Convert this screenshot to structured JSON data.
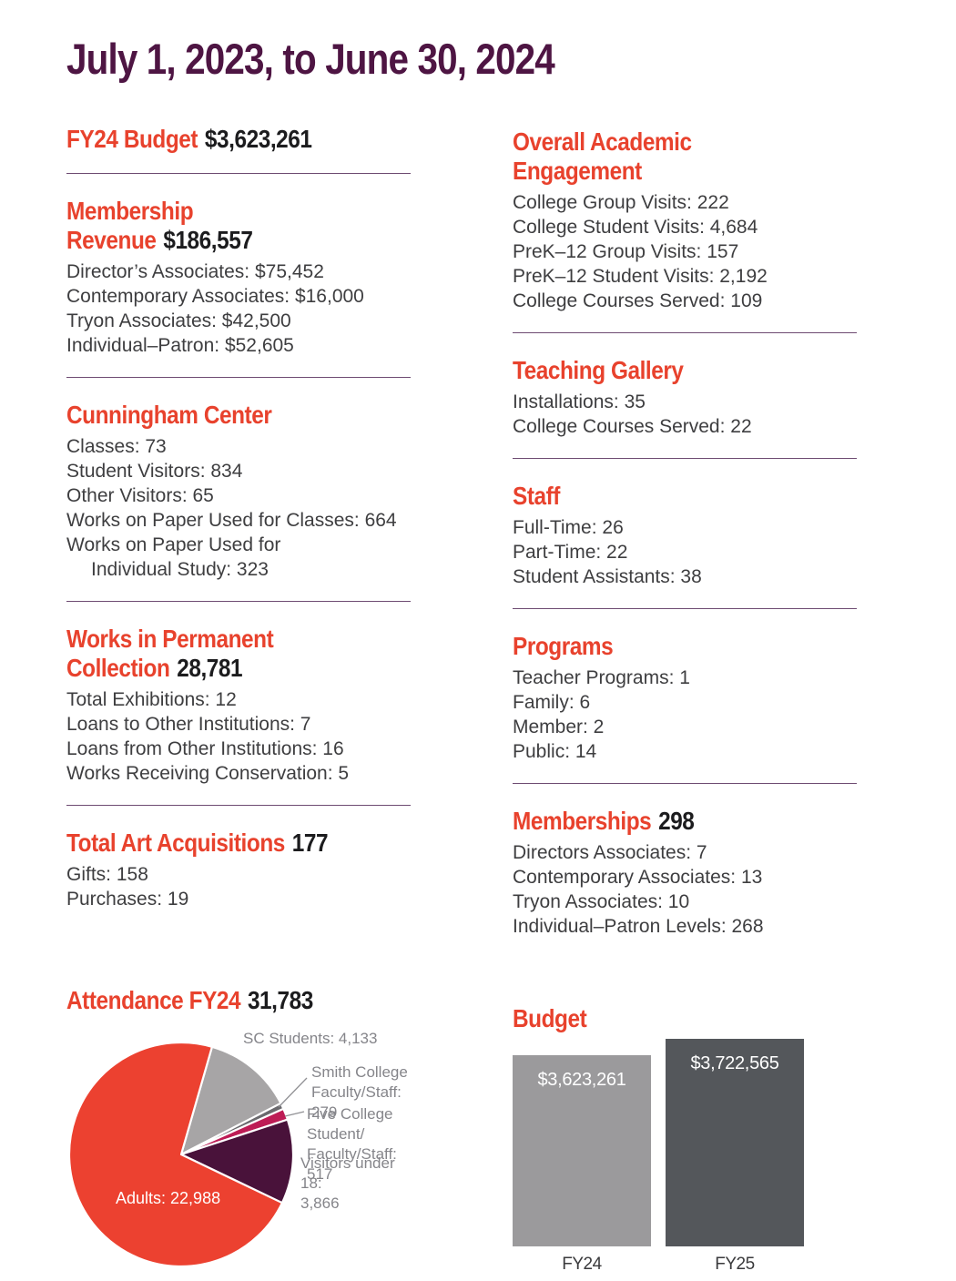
{
  "title": "July 1, 2023, to June 30, 2024",
  "columns": {
    "left": [
      {
        "heading": "FY24 Budget",
        "value": "$3,623,261",
        "lines": [],
        "divider": true
      },
      {
        "heading": "Membership Revenue",
        "value": "$186,557",
        "lines": [
          {
            "text": "Director’s Associates: $75,452"
          },
          {
            "text": "Contemporary Associates: $16,000"
          },
          {
            "text": "Tryon Associates: $42,500"
          },
          {
            "text": "Individual–Patron: $52,605"
          }
        ],
        "divider": true
      },
      {
        "heading": "Cunningham Center",
        "value": "",
        "lines": [
          {
            "text": "Classes: 73"
          },
          {
            "text": "Student Visitors: 834"
          },
          {
            "text": "Other Visitors: 65"
          },
          {
            "text": "Works on Paper Used for Classes: 664"
          },
          {
            "text": "Works on Paper Used for"
          },
          {
            "text": "Individual Study: 323",
            "indent": true
          }
        ],
        "divider": true
      },
      {
        "heading": "Works in Permanent\nCollection",
        "value": "28,781",
        "lines": [
          {
            "text": "Total Exhibitions: 12"
          },
          {
            "text": "Loans to Other Institutions: 7"
          },
          {
            "text": "Loans from Other Institutions: 16"
          },
          {
            "text": "Works Receiving Conservation: 5"
          }
        ],
        "divider": true
      },
      {
        "heading": "Total Art Acquisitions",
        "value": "177",
        "lines": [
          {
            "text": "Gifts: 158"
          },
          {
            "text": "Purchases: 19"
          }
        ],
        "divider": false
      }
    ],
    "right": [
      {
        "heading": "Overall Academic Engagement",
        "value": "",
        "lines": [
          {
            "text": "College Group Visits: 222"
          },
          {
            "text": "College Student Visits: 4,684"
          },
          {
            "text": "PreK–12 Group Visits: 157"
          },
          {
            "text": "PreK–12 Student Visits: 2,192"
          },
          {
            "text": "College Courses Served: 109"
          }
        ],
        "divider": true
      },
      {
        "heading": "Teaching Gallery",
        "value": "",
        "lines": [
          {
            "text": "Installations: 35"
          },
          {
            "text": "College Courses Served: 22"
          }
        ],
        "divider": true
      },
      {
        "heading": "Staff",
        "value": "",
        "lines": [
          {
            "text": "Full-Time: 26"
          },
          {
            "text": "Part-Time: 22"
          },
          {
            "text": "Student Assistants: 38"
          }
        ],
        "divider": true
      },
      {
        "heading": "Programs",
        "value": "",
        "lines": [
          {
            "text": "Teacher Programs: 1"
          },
          {
            "text": "Family: 6"
          },
          {
            "text": "Member: 2"
          },
          {
            "text": "Public: 14"
          }
        ],
        "divider": true
      },
      {
        "heading": "Memberships",
        "value": "298",
        "lines": [
          {
            "text": "Directors Associates: 7"
          },
          {
            "text": "Contemporary Associates: 13"
          },
          {
            "text": "Tryon Associates: 10"
          },
          {
            "text": "Individual–Patron Levels: 268"
          }
        ],
        "divider": false
      }
    ]
  },
  "attendance": {
    "heading": "Attendance FY24",
    "value": "31,783"
  },
  "budget": {
    "heading": "Budget"
  },
  "chart_data": [
    {
      "type": "pie",
      "title": "Attendance FY24",
      "total": 31783,
      "start_angle_deg_clockwise_from_north": 16,
      "categories": [
        "SC Students",
        "Smith College Faculty/Staff",
        "Five College Student/Faculty/Staff",
        "Visitors under 18",
        "Adults"
      ],
      "values": [
        4133,
        279,
        517,
        3866,
        22988
      ],
      "colors": [
        "#a7a5a6",
        "#6a696d",
        "#bd1c55",
        "#49123a",
        "#ec4130"
      ],
      "labels": [
        "SC Students: 4,133",
        "Smith College\nFaculty/Staff: 279",
        "Five College Student/\nFaculty/Staff: 517",
        "Visitors under 18:\n3,866",
        "Adults: 22,988"
      ],
      "legend_position": "outside-right"
    },
    {
      "type": "bar",
      "title": "Budget",
      "categories": [
        "FY24",
        "FY25"
      ],
      "values": [
        3623261,
        3722565
      ],
      "value_labels": [
        "$3,623,261",
        "$3,722,565"
      ],
      "colors": [
        "#9b9a9c",
        "#54575b"
      ],
      "value_label_position": "inside-top",
      "grid": false
    }
  ]
}
